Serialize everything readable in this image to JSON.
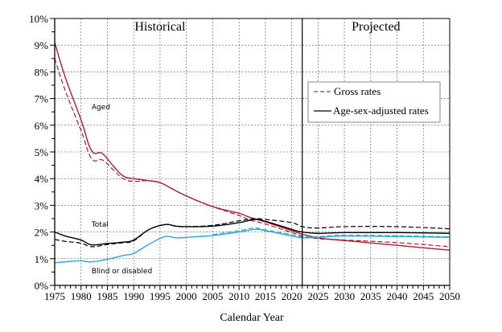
{
  "chart_data": {
    "type": "line",
    "title": "",
    "xlabel": "Calendar Year",
    "ylabel": "",
    "xlim": [
      1975,
      2050
    ],
    "ylim": [
      0,
      10
    ],
    "grid": true,
    "x_ticks": [
      "1975",
      "1980",
      "1985",
      "1990",
      "1995",
      "2000",
      "2005",
      "2010",
      "2015",
      "2020",
      "2025",
      "2030",
      "2035",
      "2040",
      "2045",
      "2050"
    ],
    "y_ticks": [
      "0%",
      "1%",
      "2%",
      "3%",
      "4%",
      "5%",
      "6%",
      "7%",
      "8%",
      "9%",
      "10%"
    ],
    "divider_year": 2022,
    "region_labels": {
      "historical": "Historical",
      "projected": "Projected"
    },
    "legend": {
      "placement": "upper-right",
      "entries": [
        {
          "label": "Gross rates",
          "style": "dashed"
        },
        {
          "label": "Age-sex-adjusted rates",
          "style": "solid"
        }
      ]
    },
    "annotations": [
      {
        "text": "Aged",
        "x": 1982,
        "y": 6.6
      },
      {
        "text": "Total",
        "x": 1982,
        "y": 2.2
      },
      {
        "text": "Blind or disabled",
        "x": 1982,
        "y": 0.45
      }
    ],
    "series": [
      {
        "name": "Aged - age-sex-adjusted",
        "group": "Aged",
        "style": "solid",
        "color": "#a8202e",
        "x": [
          1975,
          1977,
          1980,
          1982,
          1984,
          1986,
          1988,
          1990,
          1993,
          1995,
          1997,
          2000,
          2005,
          2010,
          2012,
          2015,
          2020,
          2022,
          2025,
          2030,
          2040,
          2050
        ],
        "y": [
          9.1,
          7.8,
          6.2,
          5.05,
          4.95,
          4.5,
          4.1,
          4.0,
          3.92,
          3.85,
          3.65,
          3.35,
          2.95,
          2.7,
          2.55,
          2.38,
          2.05,
          1.92,
          1.78,
          1.68,
          1.5,
          1.32
        ]
      },
      {
        "name": "Aged - gross",
        "group": "Aged",
        "style": "dashed",
        "color": "#a8202e",
        "x": [
          1975,
          1977,
          1980,
          1982,
          1984,
          1986,
          1988,
          1990,
          1993,
          1995,
          1997,
          2000,
          2005,
          2010,
          2012,
          2015,
          2020,
          2022,
          2025,
          2030,
          2040,
          2050
        ],
        "y": [
          8.5,
          7.3,
          5.8,
          4.75,
          4.7,
          4.35,
          4.0,
          3.9,
          3.92,
          3.85,
          3.65,
          3.35,
          2.95,
          2.62,
          2.45,
          2.3,
          1.98,
          1.85,
          1.75,
          1.7,
          1.6,
          1.45
        ]
      },
      {
        "name": "Total - age-sex-adjusted",
        "group": "Total",
        "style": "solid",
        "color": "#000000",
        "x": [
          1975,
          1977,
          1980,
          1982,
          1985,
          1988,
          1990,
          1993,
          1996,
          1998,
          2000,
          2005,
          2010,
          2013,
          2015,
          2020,
          2022,
          2025,
          2030,
          2040,
          2050
        ],
        "y": [
          2.0,
          1.85,
          1.7,
          1.52,
          1.57,
          1.62,
          1.7,
          2.1,
          2.28,
          2.22,
          2.2,
          2.22,
          2.35,
          2.47,
          2.4,
          2.1,
          2.0,
          1.95,
          1.98,
          1.98,
          1.95
        ]
      },
      {
        "name": "Total - gross",
        "group": "Total",
        "style": "dashed",
        "color": "#000000",
        "x": [
          1975,
          1977,
          1980,
          1982,
          1985,
          1988,
          1990,
          1993,
          1996,
          1998,
          2000,
          2005,
          2010,
          2013,
          2015,
          2020,
          2022,
          2025,
          2030,
          2040,
          2050
        ],
        "y": [
          1.72,
          1.65,
          1.58,
          1.45,
          1.53,
          1.6,
          1.67,
          2.1,
          2.28,
          2.22,
          2.2,
          2.25,
          2.42,
          2.5,
          2.47,
          2.35,
          2.2,
          2.15,
          2.2,
          2.2,
          2.12
        ]
      },
      {
        "name": "Blind or disabled - age-sex-adjusted",
        "group": "Blind or disabled",
        "style": "solid",
        "color": "#2aa8d8",
        "x": [
          1975,
          1978,
          1980,
          1982,
          1985,
          1988,
          1990,
          1993,
          1996,
          1998,
          2000,
          2005,
          2010,
          2013,
          2015,
          2020,
          2022,
          2025,
          2030,
          2040,
          2050
        ],
        "y": [
          0.85,
          0.9,
          0.92,
          0.88,
          0.98,
          1.12,
          1.2,
          1.55,
          1.83,
          1.78,
          1.8,
          1.87,
          2.0,
          2.1,
          2.05,
          1.85,
          1.78,
          1.8,
          1.85,
          1.83,
          1.8
        ]
      },
      {
        "name": "Blind or disabled - gross",
        "group": "Blind or disabled",
        "style": "dashed",
        "color": "#2aa8d8",
        "x": [
          2005,
          2010,
          2013,
          2015,
          2020,
          2022,
          2025,
          2030,
          2040,
          2050
        ],
        "y": [
          1.9,
          2.05,
          2.15,
          2.08,
          1.9,
          1.82,
          1.83,
          1.88,
          1.86,
          1.82
        ]
      }
    ]
  }
}
